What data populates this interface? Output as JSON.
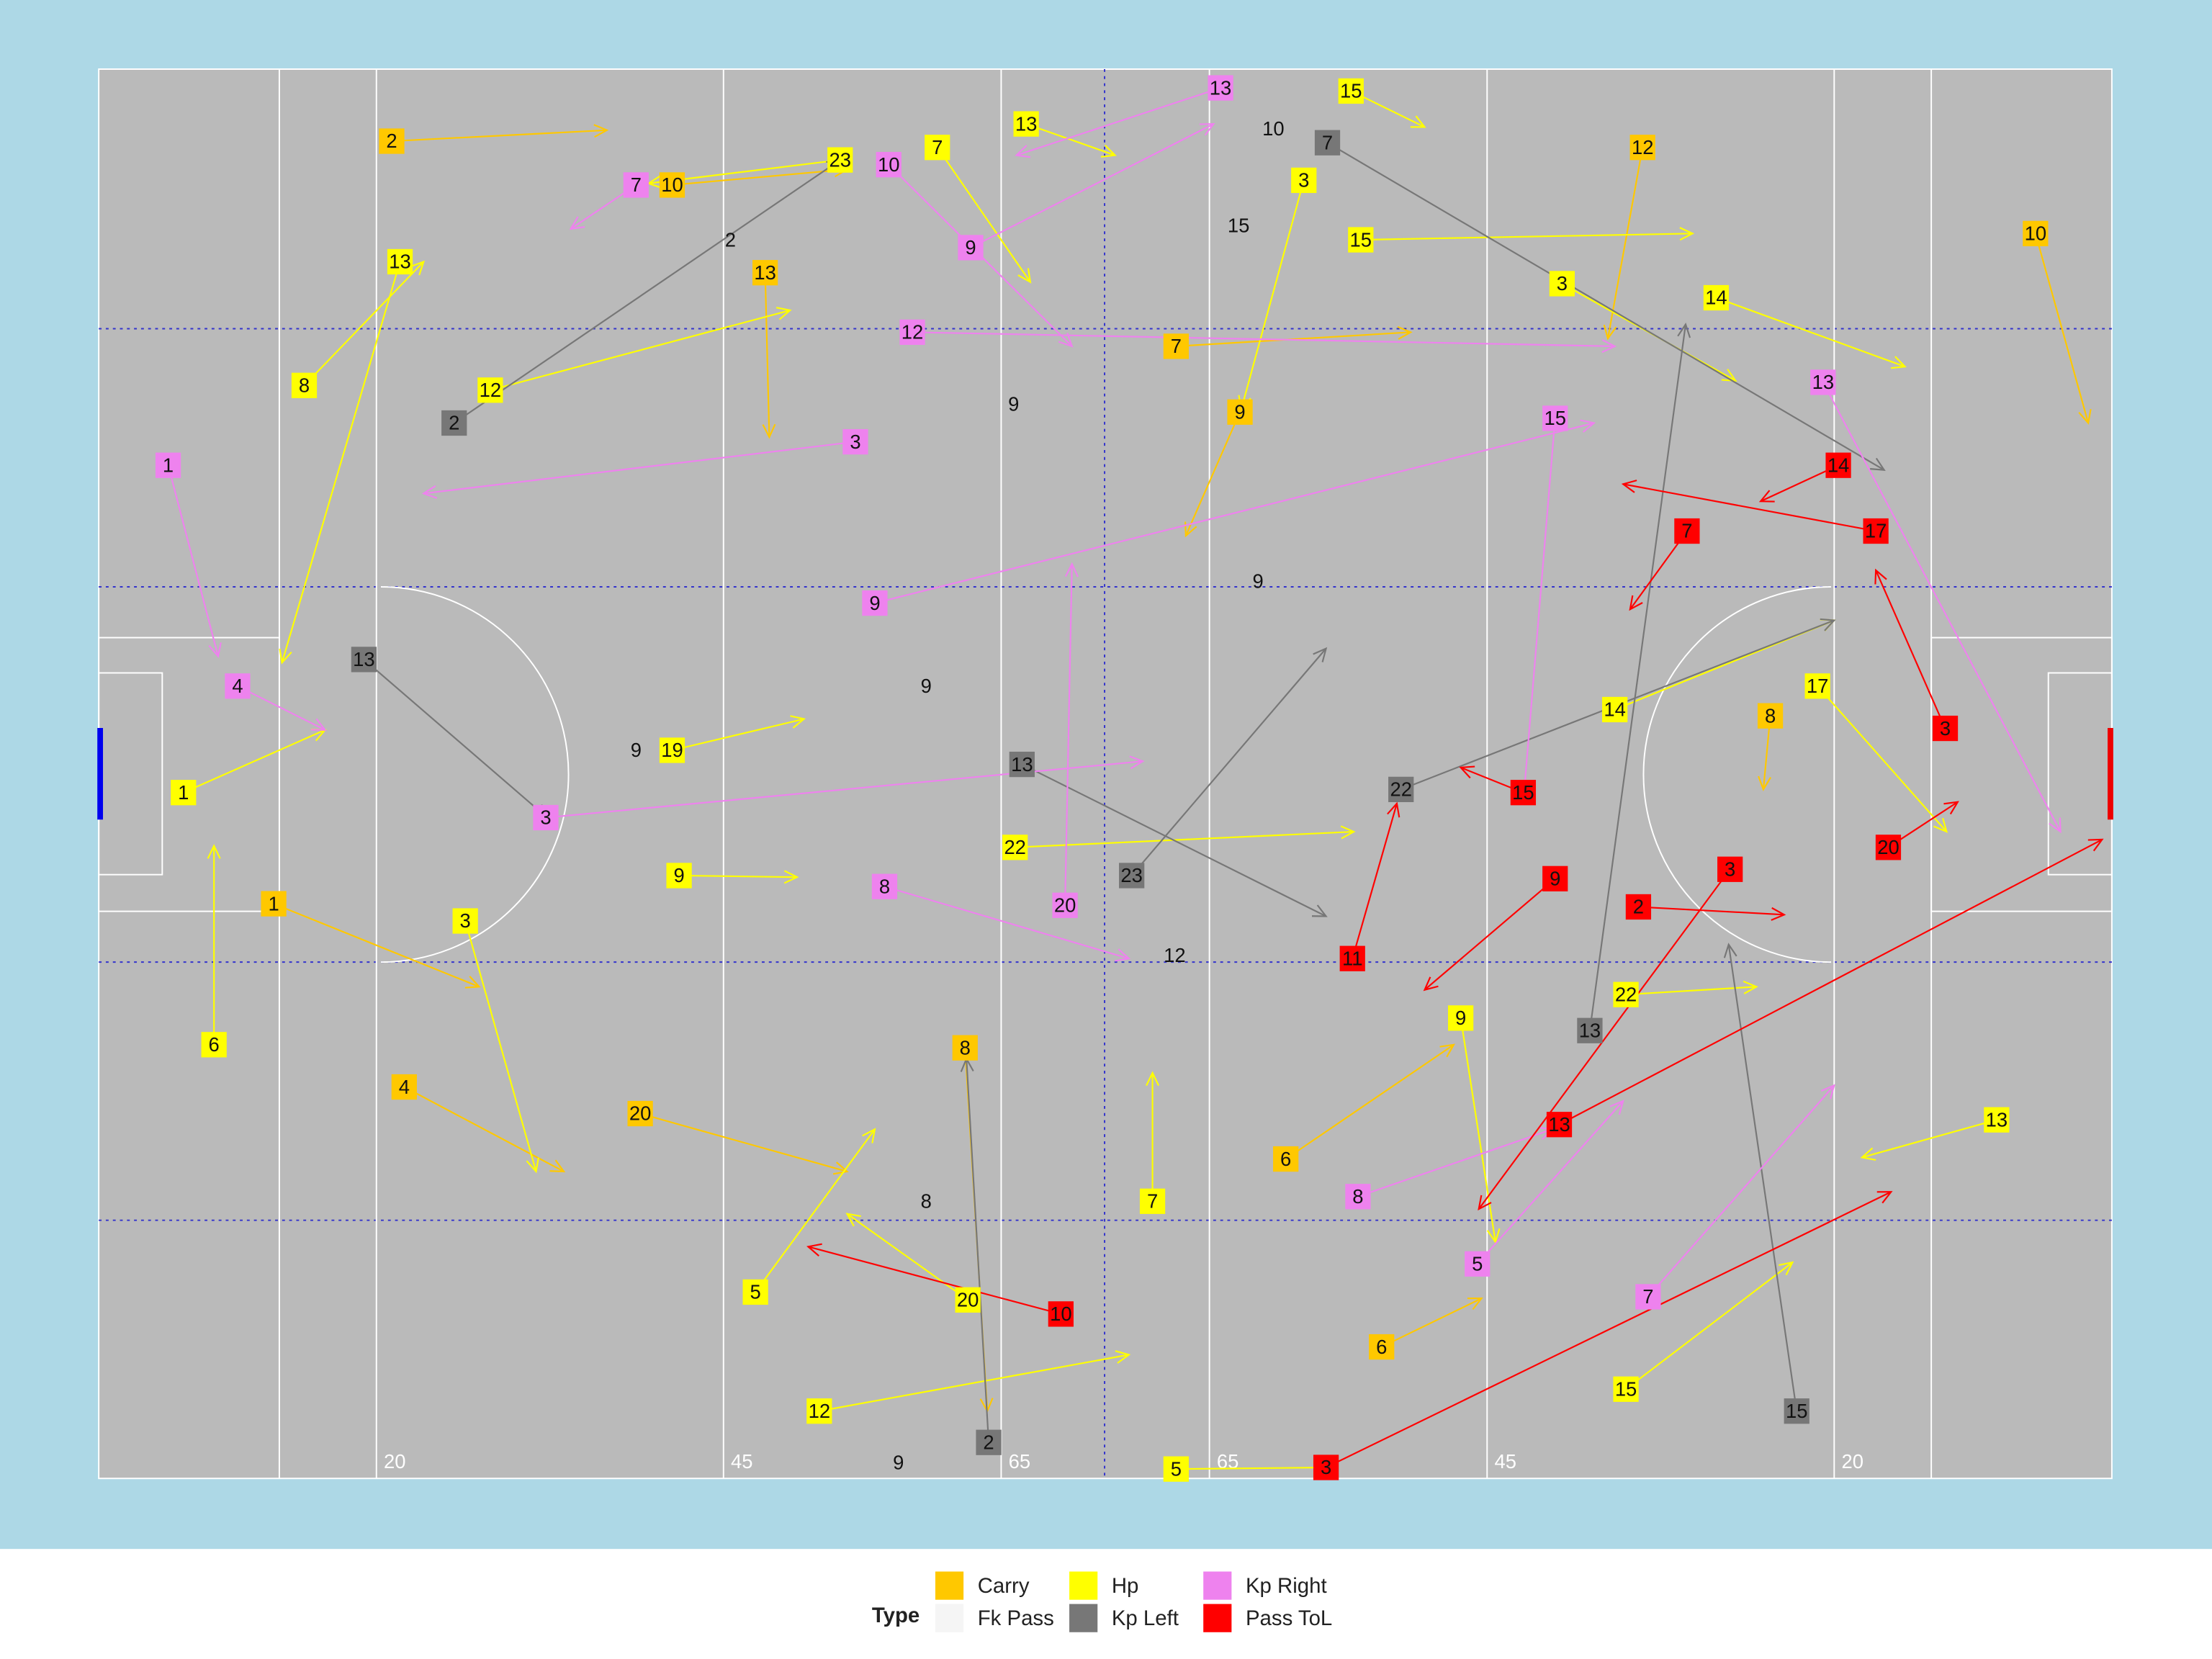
{
  "chart_data": {
    "type": "arrow",
    "legend_title": "Type",
    "xlim": [
      0,
      145
    ],
    "ylim": [
      0,
      90
    ],
    "xticks": [
      20,
      45,
      65,
      {
        "value": 80,
        "label": "65"
      },
      {
        "value": 100,
        "label": "45"
      },
      {
        "value": 125,
        "label": "20"
      }
    ],
    "series": [
      {
        "name": "Carry",
        "color": "#ffc800",
        "labels": [
          2,
          10,
          12,
          1,
          4,
          20,
          8,
          6,
          8,
          7,
          9,
          13,
          10,
          6
        ],
        "x": [
          21.1,
          139.5,
          111.2,
          12.6,
          22.0,
          39.0,
          62.4,
          85.5,
          120.4,
          77.6,
          82.2,
          48.0,
          41.3,
          92.4
        ],
        "y": [
          4.6,
          10.5,
          5.0,
          53.3,
          65.0,
          66.7,
          62.5,
          69.6,
          41.3,
          17.7,
          21.9,
          13.0,
          7.4,
          81.6
        ],
        "x2": [
          36.6,
          143.3,
          108.7,
          27.4,
          33.5,
          53.9,
          64.0,
          97.6,
          119.9,
          94.5,
          78.3,
          48.3,
          53.9,
          99.6
        ],
        "y2": [
          3.9,
          22.6,
          17.2,
          58.6,
          70.4,
          70.4,
          85.7,
          62.3,
          46.0,
          16.8,
          29.8,
          23.5,
          6.4,
          78.5
        ]
      },
      {
        "name": "Fk Pass",
        "color": "#f5f5f5",
        "labels": [
          2,
          9,
          9,
          15,
          10,
          9,
          9,
          12,
          8,
          9
        ],
        "x": [
          45.5,
          65.9,
          83.5,
          82.1,
          84.6,
          59.6,
          38.7,
          77.5,
          59.6,
          57.6
        ],
        "y": [
          10.9,
          21.4,
          32.7,
          10.0,
          3.8,
          39.4,
          43.5,
          56.6,
          72.3,
          89.0
        ]
      },
      {
        "name": "Hp",
        "color": "#ffff00",
        "labels": [
          15,
          13,
          23,
          7,
          3,
          15,
          14,
          3,
          12,
          8,
          13,
          1,
          6,
          3,
          9,
          19,
          22,
          9,
          22,
          14,
          17,
          13,
          15,
          12,
          5,
          5,
          7,
          20
        ],
        "x": [
          90.2,
          66.8,
          53.4,
          60.4,
          86.8,
          90.9,
          116.5,
          105.4,
          28.2,
          14.8,
          21.7,
          6.1,
          8.3,
          26.4,
          41.8,
          41.3,
          66.0,
          98.1,
          110.0,
          109.2,
          123.8,
          136.7,
          110.0,
          51.9,
          47.3,
          77.6,
          75.9,
          62.6
        ],
        "y": [
          1.4,
          3.5,
          5.8,
          5.0,
          7.1,
          10.9,
          14.6,
          13.7,
          20.5,
          20.2,
          12.3,
          46.2,
          62.3,
          54.4,
          51.5,
          43.5,
          49.7,
          60.6,
          59.1,
          40.9,
          39.4,
          67.1,
          84.3,
          85.7,
          78.1,
          89.4,
          72.3,
          78.6
        ],
        "x2": [
          95.5,
          73.2,
          39.6,
          67.1,
          82.3,
          114.8,
          130.1,
          117.9,
          49.8,
          23.4,
          13.2,
          16.3,
          8.3,
          31.5,
          50.3,
          50.8,
          90.4,
          100.6,
          119.4,
          125.0,
          133.1,
          127.0,
          122.0,
          74.2,
          55.9,
          88.4,
          75.9,
          53.9
        ],
        "y2": [
          3.7,
          5.5,
          7.3,
          13.6,
          21.7,
          10.5,
          19.0,
          19.9,
          15.4,
          12.3,
          37.9,
          42.2,
          49.6,
          70.4,
          51.6,
          41.5,
          48.7,
          74.9,
          58.6,
          35.2,
          48.7,
          69.5,
          76.2,
          82.1,
          67.7,
          89.3,
          64.1,
          73.1
        ]
      },
      {
        "name": "Kp Left",
        "color": "#777777",
        "labels": [
          7,
          2,
          13,
          22,
          13,
          15,
          2,
          23,
          13
        ],
        "x": [
          88.5,
          25.6,
          19.1,
          93.8,
          66.5,
          122.3,
          64.1,
          74.4,
          107.4
        ],
        "y": [
          4.7,
          22.6,
          37.7,
          46.0,
          44.4,
          85.7,
          87.7,
          51.5,
          61.4
        ],
        "x2": [
          128.6,
          53.4,
          32.3,
          125.0,
          88.4,
          117.4,
          62.5,
          88.4,
          114.3
        ],
        "y2": [
          25.6,
          5.8,
          47.8,
          35.2,
          54.1,
          55.9,
          63.2,
          37.0,
          16.3
        ]
      },
      {
        "name": "Kp Right",
        "color": "#ee82ee",
        "labels": [
          13,
          10,
          9,
          12,
          13,
          9,
          7,
          4,
          1,
          3,
          8,
          20,
          5,
          7,
          8,
          15,
          3
        ],
        "x": [
          80.8,
          56.9,
          62.8,
          58.6,
          124.2,
          55.9,
          38.7,
          10.0,
          5.0,
          32.2,
          56.6,
          69.6,
          99.3,
          111.6,
          90.7,
          104.9,
          54.5
        ],
        "y": [
          1.2,
          6.1,
          11.4,
          16.8,
          20.0,
          34.1,
          7.4,
          39.4,
          25.3,
          47.8,
          52.2,
          53.4,
          76.3,
          78.4,
          72.0,
          22.3,
          23.8
        ],
        "x2": [
          66.1,
          70.1,
          80.3,
          109.2,
          141.3,
          107.7,
          34.0,
          16.3,
          8.6,
          75.2,
          74.2,
          70.1,
          109.8,
          125.0,
          104.7,
          102.6,
          23.4
        ],
        "y2": [
          5.5,
          17.7,
          3.5,
          17.7,
          48.7,
          22.6,
          10.2,
          42.2,
          37.5,
          44.2,
          56.8,
          31.6,
          65.9,
          64.9,
          67.7,
          46.9,
          27.1
        ]
      },
      {
        "name": "Pass ToL",
        "color": "#ff0000",
        "labels": [
          17,
          14,
          7,
          3,
          20,
          15,
          2,
          9,
          3,
          11,
          10,
          3,
          13
        ],
        "x": [
          128.0,
          125.3,
          114.4,
          133.0,
          128.9,
          102.6,
          110.9,
          104.9,
          117.5,
          90.3,
          69.3,
          88.4,
          105.2
        ],
        "y": [
          29.5,
          25.3,
          29.5,
          42.1,
          49.7,
          46.2,
          53.5,
          51.7,
          51.1,
          56.8,
          79.5,
          89.3,
          67.4
        ],
        "x2": [
          109.8,
          119.7,
          110.3,
          128.0,
          133.9,
          98.1,
          121.4,
          95.5,
          99.4,
          93.5,
          51.1,
          129.1,
          144.3
        ],
        "y2": [
          26.5,
          27.6,
          34.5,
          32.0,
          46.8,
          44.6,
          54.0,
          58.8,
          72.8,
          46.9,
          75.2,
          71.7,
          49.2
        ]
      }
    ]
  }
}
